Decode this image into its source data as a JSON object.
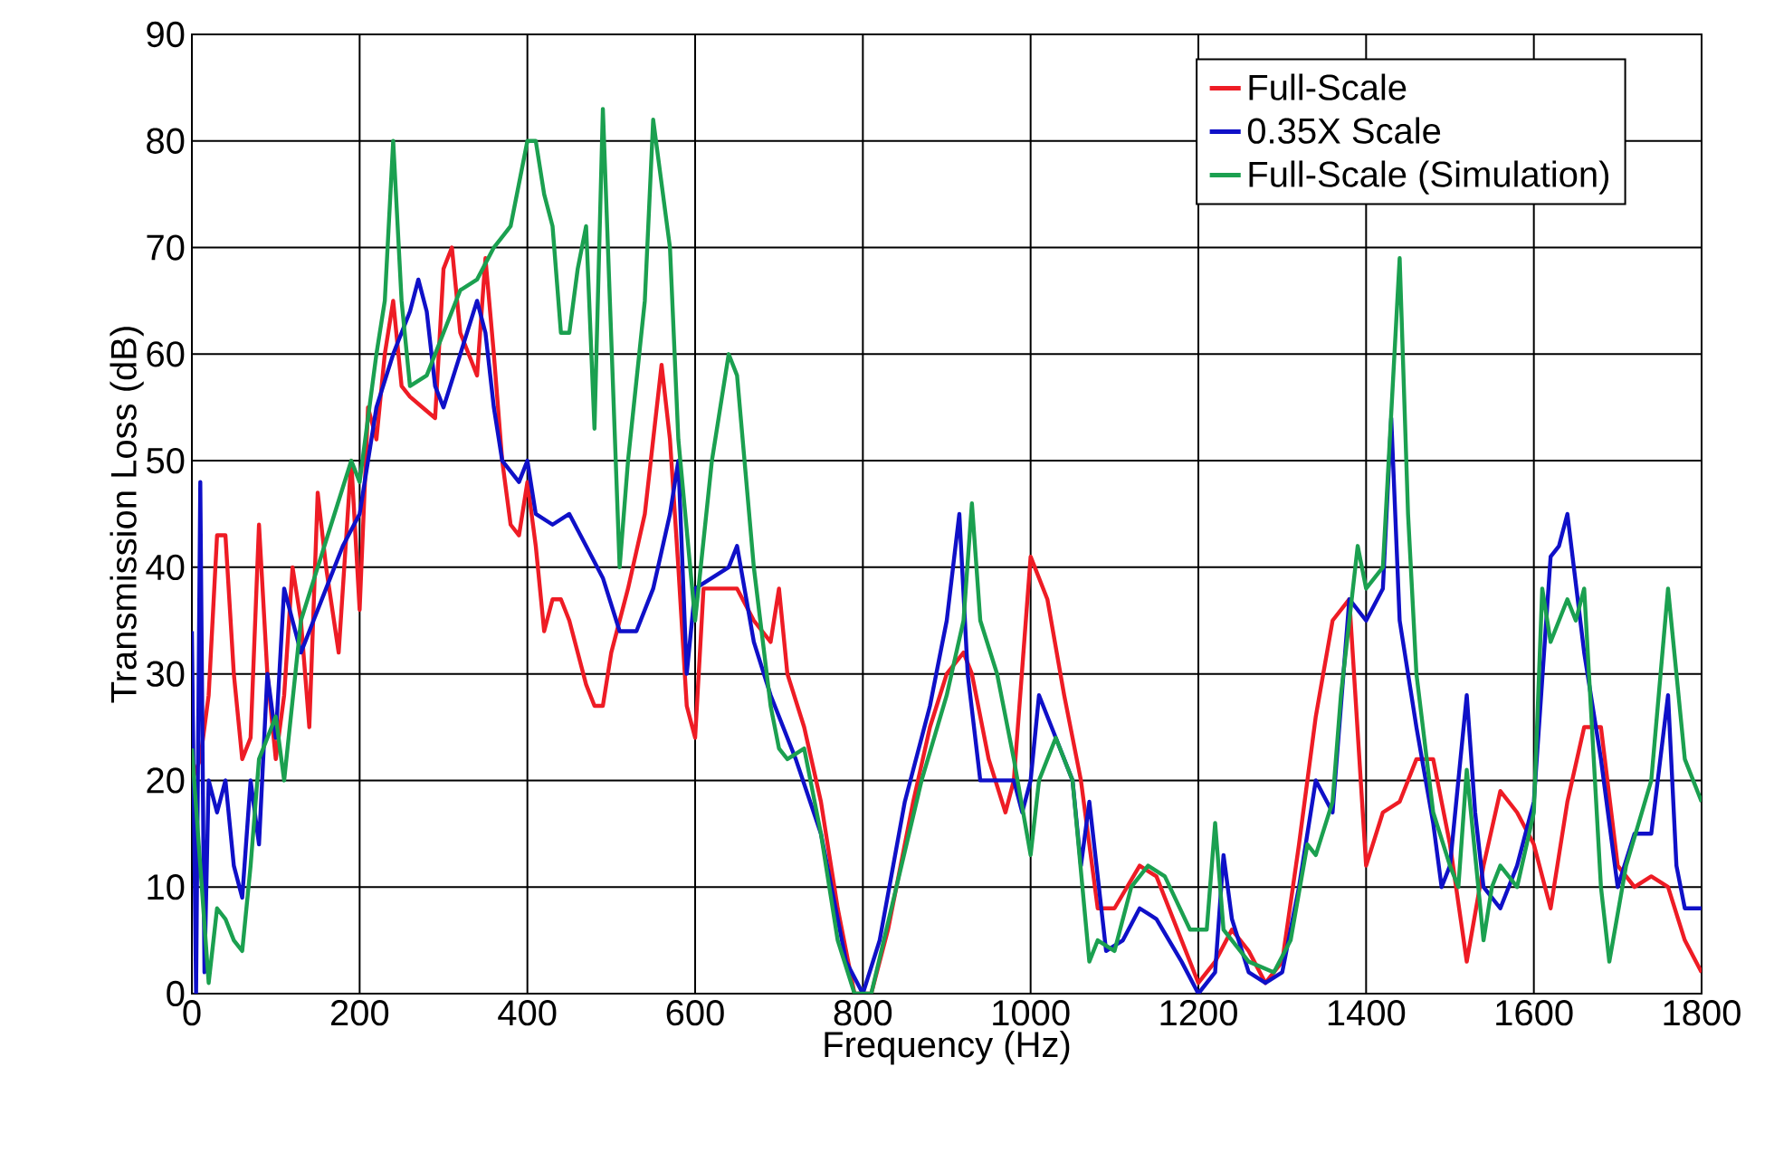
{
  "chart_data": {
    "type": "line",
    "xlabel": "Frequency (Hz)",
    "ylabel": "Transmission Loss (dB)",
    "xlim": [
      0,
      1800
    ],
    "ylim": [
      0,
      90
    ],
    "xticks": [
      0,
      200,
      400,
      600,
      800,
      1000,
      1200,
      1400,
      1600,
      1800
    ],
    "yticks": [
      0,
      10,
      20,
      30,
      40,
      50,
      60,
      70,
      80,
      90
    ],
    "grid": true,
    "legend": "top right",
    "marker": "none",
    "line_style": "solid",
    "series": [
      {
        "name": "Full-Scale",
        "color": "#ee1c25",
        "x": [
          0,
          10,
          20,
          30,
          40,
          50,
          60,
          70,
          80,
          90,
          100,
          110,
          120,
          130,
          140,
          150,
          160,
          175,
          190,
          200,
          210,
          220,
          230,
          240,
          250,
          260,
          275,
          290,
          300,
          310,
          320,
          330,
          340,
          350,
          360,
          370,
          380,
          390,
          400,
          410,
          420,
          430,
          440,
          450,
          470,
          480,
          490,
          500,
          520,
          540,
          560,
          570,
          580,
          590,
          600,
          610,
          630,
          650,
          670,
          690,
          700,
          710,
          730,
          750,
          770,
          790,
          810,
          830,
          860,
          880,
          900,
          920,
          930,
          950,
          970,
          980,
          1000,
          1020,
          1040,
          1060,
          1080,
          1100,
          1130,
          1150,
          1180,
          1200,
          1220,
          1240,
          1260,
          1280,
          1300,
          1320,
          1340,
          1360,
          1380,
          1400,
          1420,
          1440,
          1460,
          1480,
          1500,
          1520,
          1540,
          1560,
          1580,
          1600,
          1620,
          1640,
          1660,
          1680,
          1700,
          1720,
          1740,
          1760,
          1780,
          1800
        ],
        "values": [
          20,
          22,
          28,
          43,
          43,
          30,
          22,
          24,
          44,
          30,
          22,
          28,
          40,
          35,
          25,
          47,
          40,
          32,
          50,
          36,
          55,
          52,
          60,
          65,
          57,
          56,
          55,
          54,
          68,
          70,
          62,
          60,
          58,
          69,
          60,
          50,
          44,
          43,
          48,
          42,
          34,
          37,
          37,
          35,
          29,
          27,
          27,
          32,
          38,
          45,
          59,
          52,
          40,
          27,
          24,
          38,
          38,
          38,
          35,
          33,
          38,
          30,
          25,
          18,
          8,
          0,
          0,
          6,
          18,
          25,
          30,
          32,
          30,
          22,
          17,
          20,
          41,
          37,
          28,
          20,
          8,
          8,
          12,
          11,
          5,
          1,
          3,
          6,
          4,
          1,
          3,
          14,
          26,
          35,
          37,
          12,
          17,
          18,
          22,
          22,
          14,
          3,
          12,
          19,
          17,
          14,
          8,
          18,
          25,
          25,
          12,
          10,
          11,
          10,
          5,
          2
        ]
      },
      {
        "name": "0.35X Scale",
        "color": "#0f10c8",
        "x": [
          0,
          5,
          10,
          15,
          20,
          30,
          40,
          50,
          60,
          70,
          80,
          90,
          100,
          110,
          120,
          130,
          140,
          160,
          180,
          200,
          220,
          240,
          260,
          270,
          280,
          290,
          300,
          320,
          340,
          350,
          360,
          370,
          390,
          400,
          410,
          430,
          450,
          470,
          490,
          510,
          530,
          550,
          570,
          580,
          590,
          600,
          620,
          640,
          650,
          670,
          690,
          720,
          750,
          780,
          800,
          820,
          850,
          880,
          900,
          915,
          925,
          940,
          960,
          980,
          990,
          1000,
          1010,
          1030,
          1050,
          1060,
          1070,
          1090,
          1110,
          1130,
          1150,
          1180,
          1200,
          1220,
          1230,
          1240,
          1260,
          1280,
          1300,
          1320,
          1340,
          1360,
          1380,
          1400,
          1420,
          1430,
          1440,
          1460,
          1480,
          1490,
          1500,
          1520,
          1530,
          1540,
          1560,
          1580,
          1600,
          1620,
          1630,
          1640,
          1660,
          1680,
          1700,
          1720,
          1740,
          1760,
          1770,
          1780,
          1800
        ],
        "values": [
          34,
          0,
          48,
          2,
          20,
          17,
          20,
          12,
          9,
          20,
          14,
          30,
          24,
          38,
          35,
          32,
          34,
          38,
          42,
          45,
          55,
          60,
          64,
          67,
          64,
          57,
          55,
          60,
          65,
          62,
          55,
          50,
          48,
          50,
          45,
          44,
          45,
          42,
          39,
          34,
          34,
          38,
          45,
          50,
          30,
          38,
          39,
          40,
          42,
          33,
          28,
          22,
          15,
          3,
          0,
          5,
          18,
          27,
          35,
          45,
          30,
          20,
          20,
          20,
          17,
          20,
          28,
          24,
          20,
          12,
          18,
          4,
          5,
          8,
          7,
          3,
          0,
          2,
          13,
          7,
          2,
          1,
          2,
          10,
          20,
          17,
          37,
          35,
          38,
          54,
          35,
          25,
          16,
          10,
          12,
          28,
          17,
          10,
          8,
          12,
          18,
          41,
          42,
          45,
          32,
          22,
          10,
          15,
          15,
          28,
          12,
          8,
          8
        ]
      },
      {
        "name": "Full-Scale (Simulation)",
        "color": "#1ba050",
        "x": [
          0,
          10,
          20,
          30,
          40,
          50,
          60,
          70,
          80,
          100,
          110,
          130,
          150,
          170,
          190,
          200,
          220,
          230,
          240,
          250,
          260,
          280,
          300,
          320,
          340,
          360,
          380,
          400,
          410,
          420,
          430,
          440,
          450,
          460,
          470,
          480,
          490,
          510,
          520,
          540,
          550,
          570,
          580,
          600,
          620,
          640,
          650,
          670,
          690,
          700,
          710,
          730,
          750,
          770,
          790,
          810,
          840,
          870,
          900,
          920,
          930,
          940,
          960,
          980,
          1000,
          1010,
          1030,
          1050,
          1070,
          1080,
          1100,
          1120,
          1140,
          1160,
          1190,
          1210,
          1220,
          1230,
          1260,
          1290,
          1310,
          1330,
          1340,
          1360,
          1370,
          1390,
          1400,
          1420,
          1440,
          1450,
          1460,
          1480,
          1500,
          1510,
          1520,
          1540,
          1550,
          1560,
          1580,
          1600,
          1610,
          1620,
          1640,
          1650,
          1660,
          1680,
          1690,
          1710,
          1740,
          1760,
          1780,
          1800
        ],
        "values": [
          23,
          12,
          1,
          8,
          7,
          5,
          4,
          12,
          22,
          26,
          20,
          35,
          40,
          45,
          50,
          48,
          60,
          65,
          80,
          65,
          57,
          58,
          62,
          66,
          67,
          70,
          72,
          80,
          80,
          75,
          72,
          62,
          62,
          68,
          72,
          53,
          83,
          40,
          50,
          65,
          82,
          70,
          52,
          35,
          50,
          60,
          58,
          40,
          27,
          23,
          22,
          23,
          15,
          5,
          0,
          0,
          10,
          20,
          28,
          35,
          46,
          35,
          30,
          22,
          13,
          20,
          24,
          20,
          3,
          5,
          4,
          10,
          12,
          11,
          6,
          6,
          16,
          6,
          3,
          2,
          5,
          14,
          13,
          18,
          28,
          42,
          38,
          40,
          69,
          45,
          30,
          17,
          12,
          10,
          21,
          5,
          10,
          12,
          10,
          17,
          38,
          33,
          37,
          35,
          38,
          10,
          3,
          12,
          20,
          38,
          22,
          18
        ]
      }
    ]
  }
}
